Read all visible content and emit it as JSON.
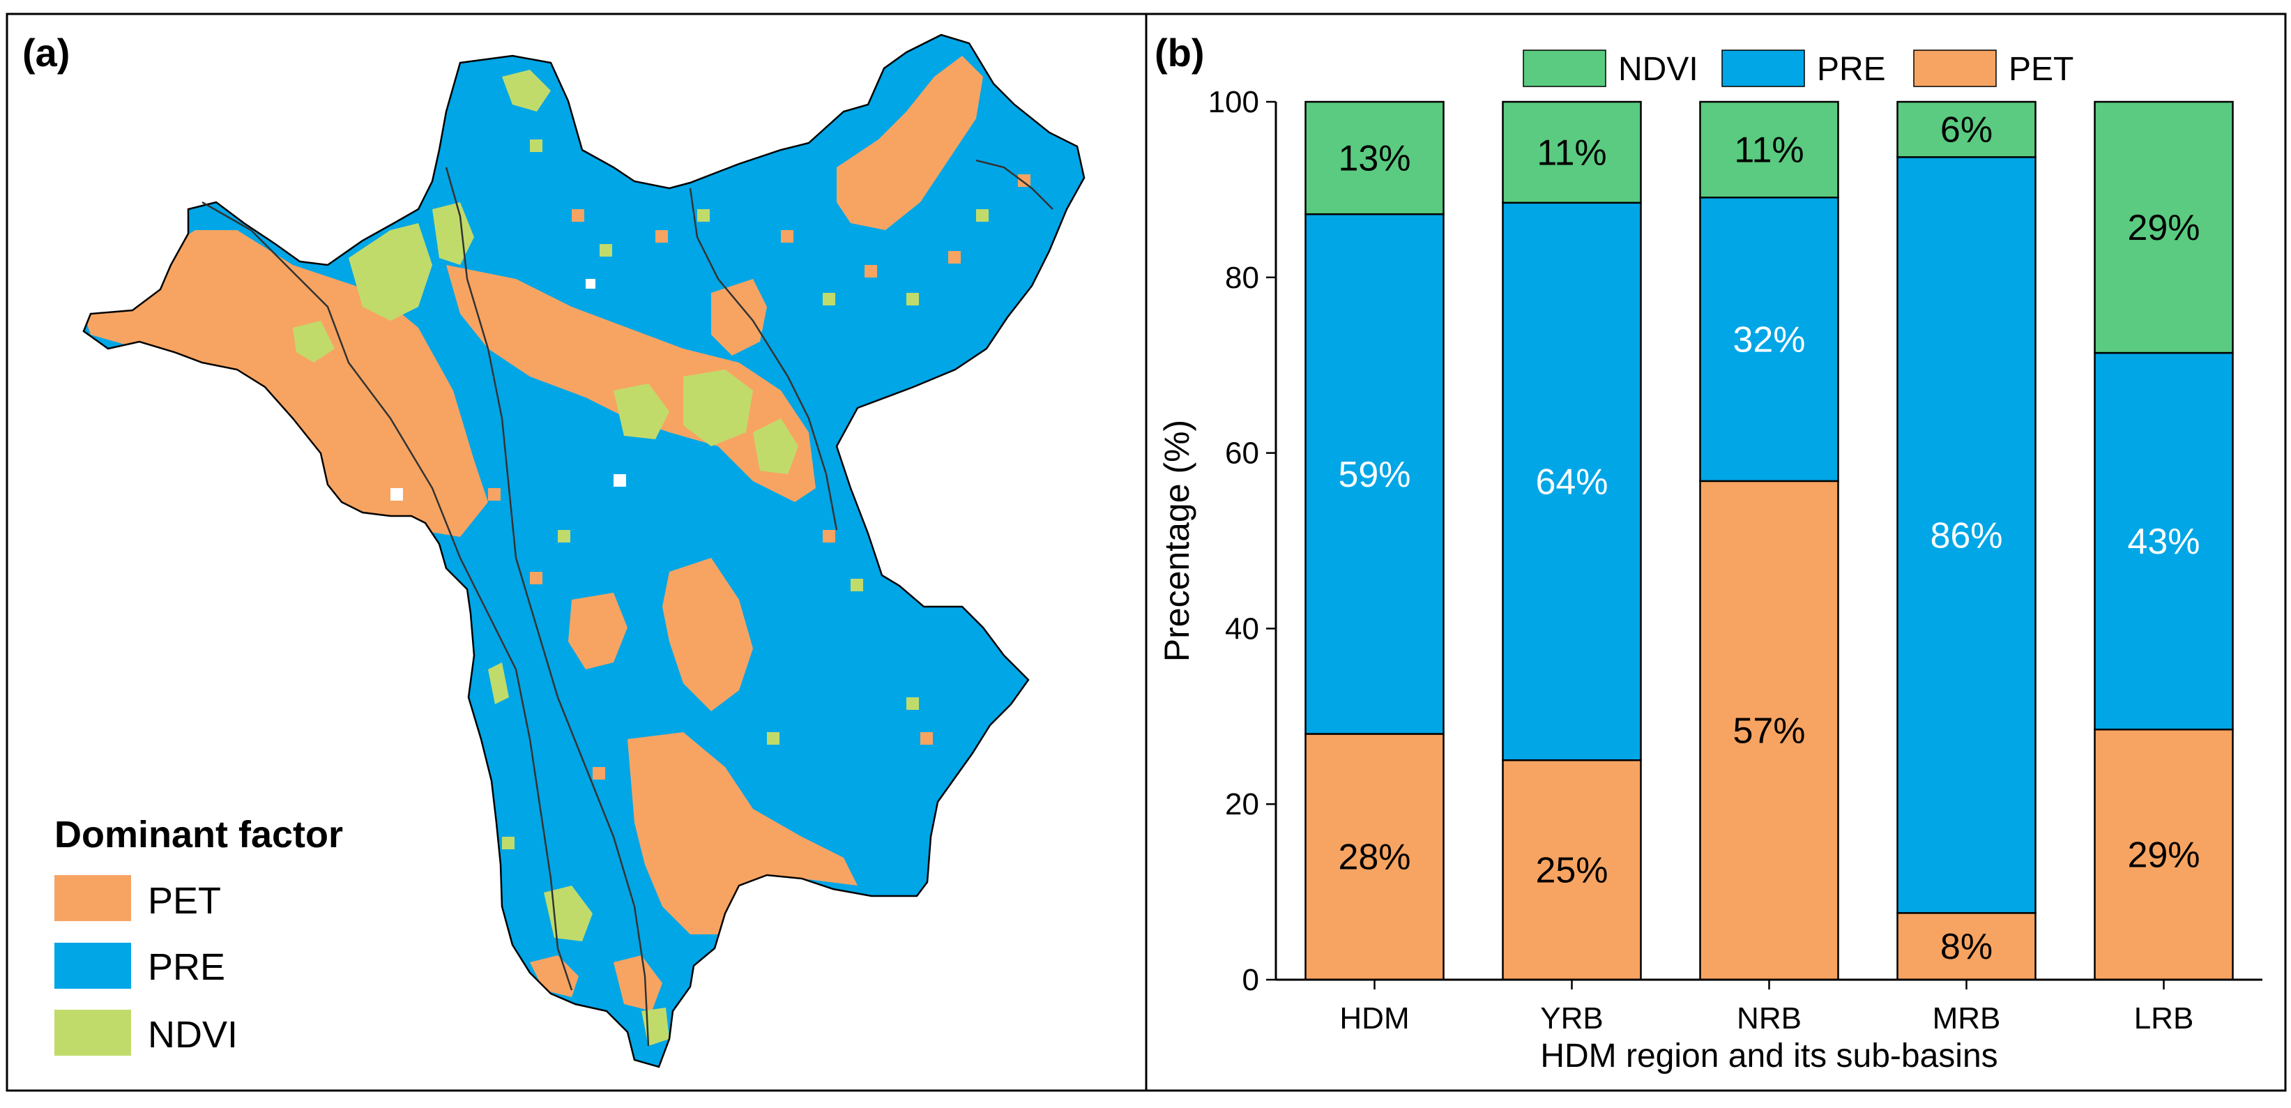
{
  "colors": {
    "pet": "#f7a462",
    "pre": "#00a6e6",
    "ndvi": "#c1db6b",
    "ndvi_bar": "#5acb80",
    "outline": "#000000"
  },
  "panel_a": {
    "label": "(a)",
    "legend": {
      "title": "Dominant factor",
      "items": [
        {
          "key": "pet",
          "label": "PET"
        },
        {
          "key": "pre",
          "label": "PRE"
        },
        {
          "key": "ndvi",
          "label": "NDVI"
        }
      ]
    }
  },
  "panel_b": {
    "label": "(b)"
  },
  "chart_data": {
    "type": "bar",
    "stacked": true,
    "title": "",
    "xlabel": "HDM region and its sub-basins",
    "ylabel": "Precentage (%)",
    "ylim": [
      0,
      100
    ],
    "yticks": [
      0,
      20,
      40,
      60,
      80,
      100
    ],
    "categories": [
      "HDM",
      "YRB",
      "NRB",
      "MRB",
      "LRB"
    ],
    "series": [
      {
        "name": "PET",
        "key": "pet",
        "values": [
          28,
          25,
          56.8,
          7.6,
          28.5
        ],
        "labels": [
          "28%",
          "25%",
          "57%",
          "8%",
          "29%"
        ]
      },
      {
        "name": "PRE",
        "key": "pre",
        "values": [
          59.2,
          63.5,
          32.3,
          86.1,
          42.9
        ],
        "labels": [
          "59%",
          "64%",
          "32%",
          "86%",
          "43%"
        ]
      },
      {
        "name": "NDVI",
        "key": "ndvi_bar",
        "values": [
          12.8,
          11.5,
          10.9,
          6.3,
          28.6
        ],
        "labels": [
          "13%",
          "11%",
          "11%",
          "6%",
          "29%"
        ]
      }
    ],
    "legend": [
      {
        "key": "ndvi_bar",
        "label": "NDVI"
      },
      {
        "key": "pre",
        "label": "PRE"
      },
      {
        "key": "pet",
        "label": "PET"
      }
    ],
    "legend_position": "top"
  }
}
